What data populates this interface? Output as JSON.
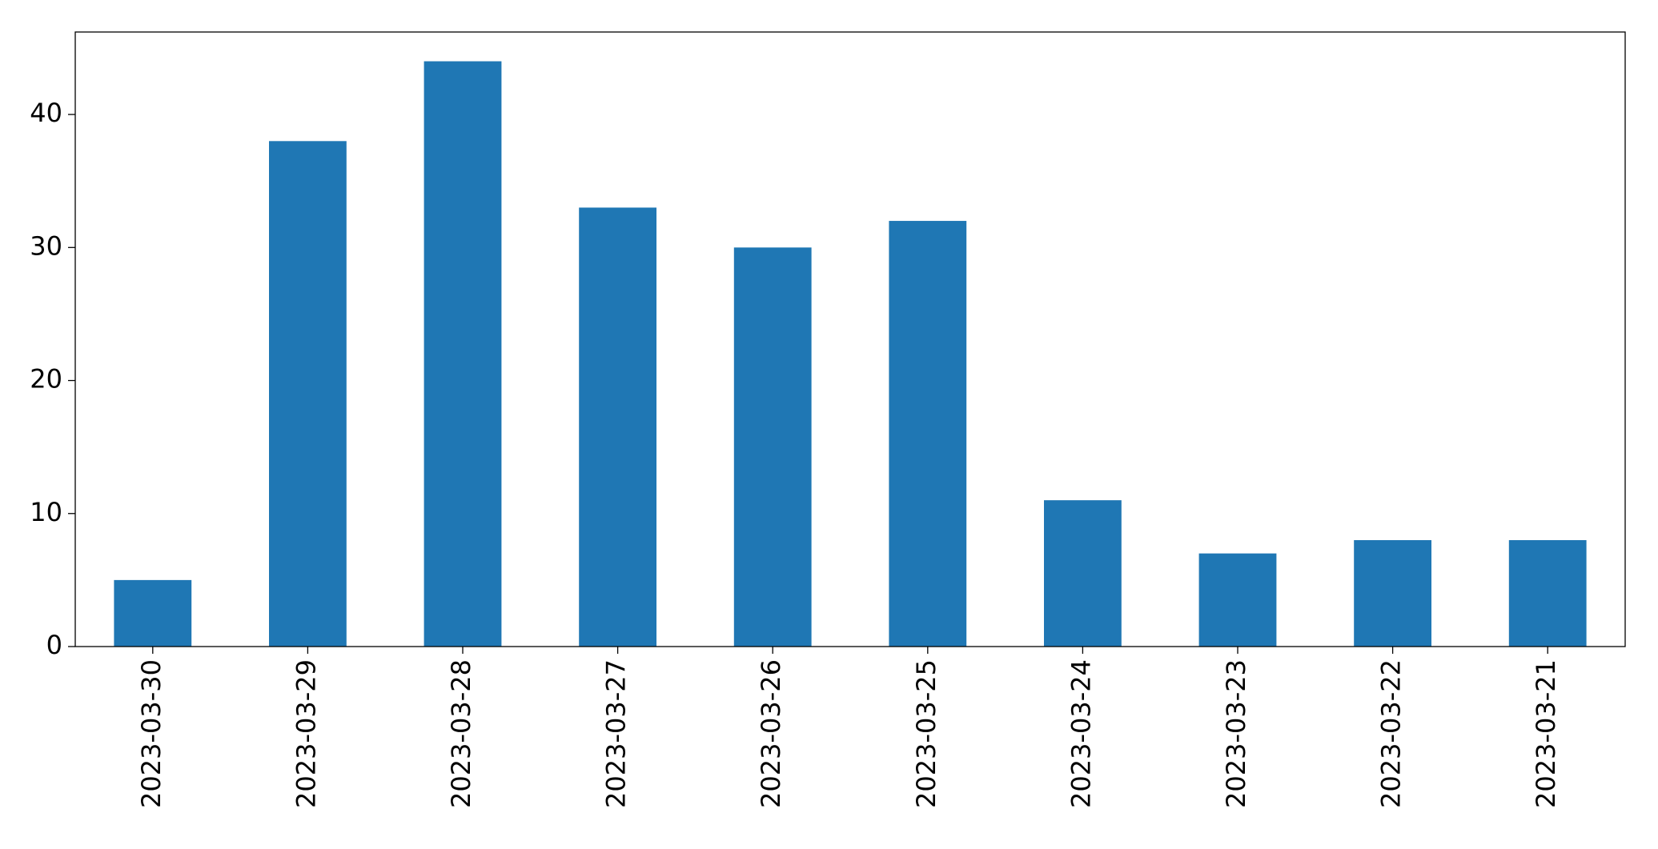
{
  "chart_data": {
    "type": "bar",
    "categories": [
      "2023-03-30",
      "2023-03-29",
      "2023-03-28",
      "2023-03-27",
      "2023-03-26",
      "2023-03-25",
      "2023-03-24",
      "2023-03-23",
      "2023-03-22",
      "2023-03-21"
    ],
    "values": [
      5,
      38,
      44,
      33,
      30,
      32,
      11,
      7,
      8,
      8
    ],
    "color": "#1f77b4",
    "ylim": [
      0,
      46.2
    ],
    "yticks": [
      0,
      10,
      20,
      30,
      40
    ],
    "grid": false
  }
}
